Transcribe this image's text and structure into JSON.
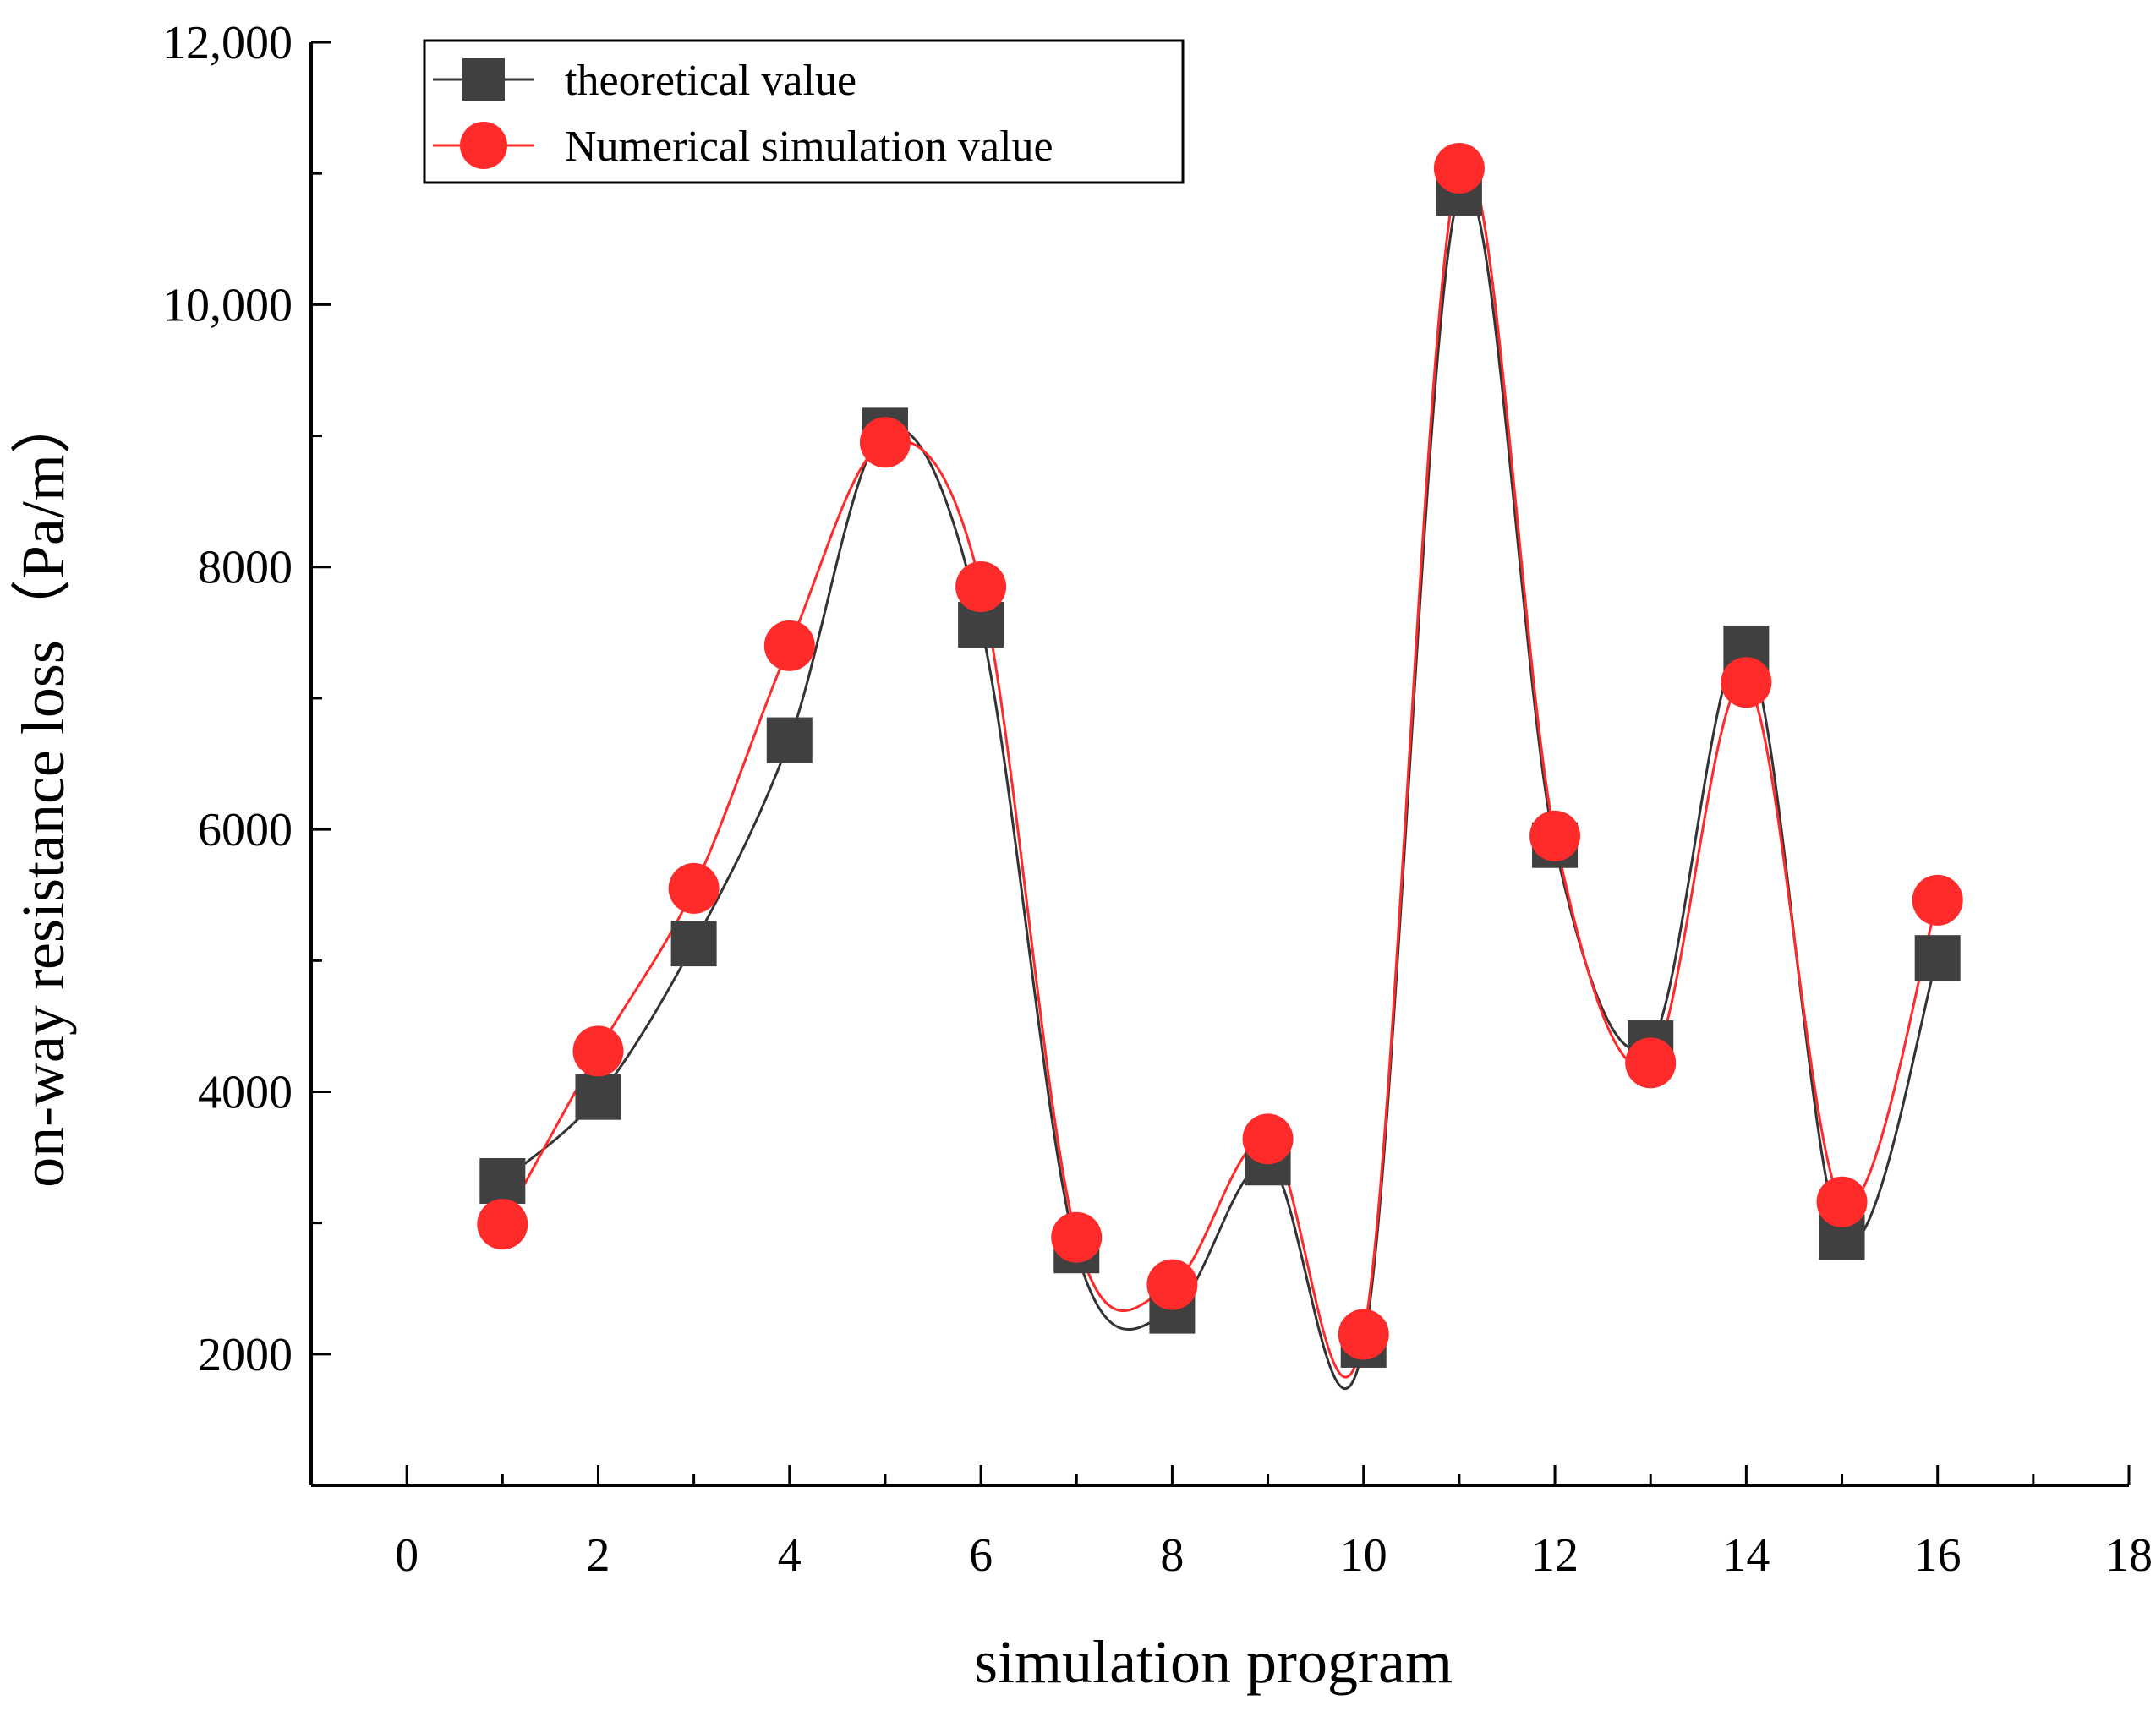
{
  "chart_data": {
    "type": "line",
    "title": "",
    "xlabel": "simulation program",
    "ylabel": "on-way resistance loss（Pa/m）",
    "xlim": [
      -1,
      18
    ],
    "ylim": [
      1000,
      12000
    ],
    "xticks": [
      0,
      2,
      4,
      6,
      8,
      10,
      12,
      14,
      16,
      18
    ],
    "xtick_labels": [
      "0",
      "2",
      "4",
      "6",
      "8",
      "10",
      "12",
      "14",
      "16",
      "18"
    ],
    "yticks": [
      2000,
      4000,
      6000,
      8000,
      10000,
      12000
    ],
    "ytick_labels": [
      "2000",
      "4000",
      "6000",
      "8000",
      "10,000",
      "12,000"
    ],
    "grid": false,
    "legend_position": "top-left",
    "x": [
      1,
      2,
      3,
      4,
      5,
      6,
      7,
      8,
      9,
      10,
      11,
      12,
      13,
      14,
      15,
      16
    ],
    "series": [
      {
        "name": "theoretical value",
        "marker": "square",
        "color": "#404040",
        "line_color": "#333333",
        "values": [
          3320,
          3960,
          5130,
          6680,
          9040,
          7560,
          2790,
          2330,
          3460,
          2070,
          10850,
          5880,
          4370,
          7380,
          2890,
          5020
        ]
      },
      {
        "name": "Numerical simulation value",
        "marker": "circle",
        "color": "#ff2a2a",
        "line_color": "#ff2a2a",
        "values": [
          2990,
          4310,
          5550,
          7400,
          8950,
          7850,
          2890,
          2530,
          3640,
          2150,
          11040,
          5950,
          4220,
          7120,
          3160,
          5460
        ]
      }
    ]
  }
}
